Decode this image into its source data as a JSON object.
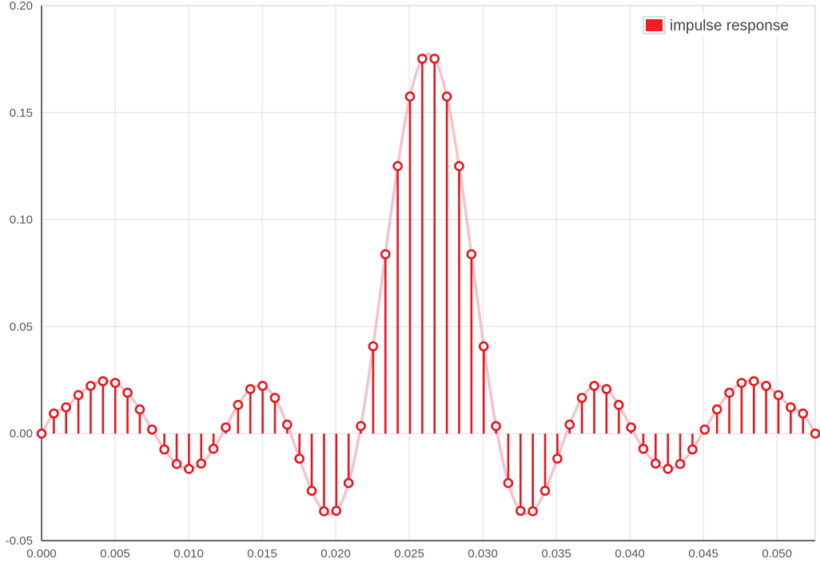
{
  "chart_data": {
    "type": "stem",
    "title": "",
    "xlabel": "",
    "ylabel": "",
    "xlim": [
      0,
      0.0526
    ],
    "ylim": [
      -0.05,
      0.2
    ],
    "x_ticks": [
      "0.000",
      "0.005",
      "0.010",
      "0.015",
      "0.020",
      "0.025",
      "0.030",
      "0.035",
      "0.040",
      "0.045",
      "0.050"
    ],
    "y_ticks": [
      "-0.05",
      "0.00",
      "0.05",
      "0.10",
      "0.15",
      "0.20"
    ],
    "grid": true,
    "legend": {
      "position": "top-right",
      "label": "impulse response"
    },
    "colors": {
      "stem": "#e8141e",
      "curve": "#f2b8c2",
      "legend_swatch": "#f51c24",
      "grid": "#dddddd"
    },
    "series": [
      {
        "name": "impulse response",
        "x": [
          0.0,
          0.000835,
          0.00167,
          0.002505,
          0.00334,
          0.004175,
          0.00501,
          0.005845,
          0.00668,
          0.007515,
          0.00835,
          0.009185,
          0.01002,
          0.010855,
          0.01169,
          0.012525,
          0.01336,
          0.014195,
          0.01503,
          0.015865,
          0.0167,
          0.017535,
          0.01837,
          0.019205,
          0.02004,
          0.020875,
          0.02171,
          0.022545,
          0.02338,
          0.024215,
          0.02505,
          0.025885,
          0.02672,
          0.027555,
          0.02839,
          0.029225,
          0.03006,
          0.030895,
          0.03173,
          0.032565,
          0.0334,
          0.034235,
          0.03507,
          0.035905,
          0.03674,
          0.037575,
          0.03841,
          0.039245,
          0.04008,
          0.040915,
          0.04175,
          0.042585,
          0.04342,
          0.044255,
          0.04509,
          0.045925,
          0.04676,
          0.047595,
          0.04843,
          0.049265,
          0.0501,
          0.050935,
          0.05177,
          0.052605
        ],
        "y": [
          0.0,
          0.0094,
          0.0123,
          0.018,
          0.0223,
          0.0245,
          0.0237,
          0.0191,
          0.0113,
          0.0019,
          -0.0074,
          -0.0142,
          -0.0165,
          -0.014,
          -0.0071,
          0.0029,
          0.0134,
          0.0208,
          0.0223,
          0.0167,
          0.0042,
          -0.0117,
          -0.0267,
          -0.0363,
          -0.0361,
          -0.0231,
          0.0035,
          0.0408,
          0.0838,
          0.125,
          0.1575,
          0.1752,
          0.1752,
          0.1575,
          0.125,
          0.0838,
          0.0408,
          0.0035,
          -0.0231,
          -0.0361,
          -0.0363,
          -0.0267,
          -0.0117,
          0.0042,
          0.0167,
          0.0223,
          0.0208,
          0.0134,
          0.0029,
          -0.0071,
          -0.014,
          -0.0165,
          -0.0142,
          -0.0074,
          0.0019,
          0.0113,
          0.0191,
          0.0237,
          0.0245,
          0.0223,
          0.018,
          0.0123,
          0.0094,
          0.0
        ]
      }
    ]
  }
}
